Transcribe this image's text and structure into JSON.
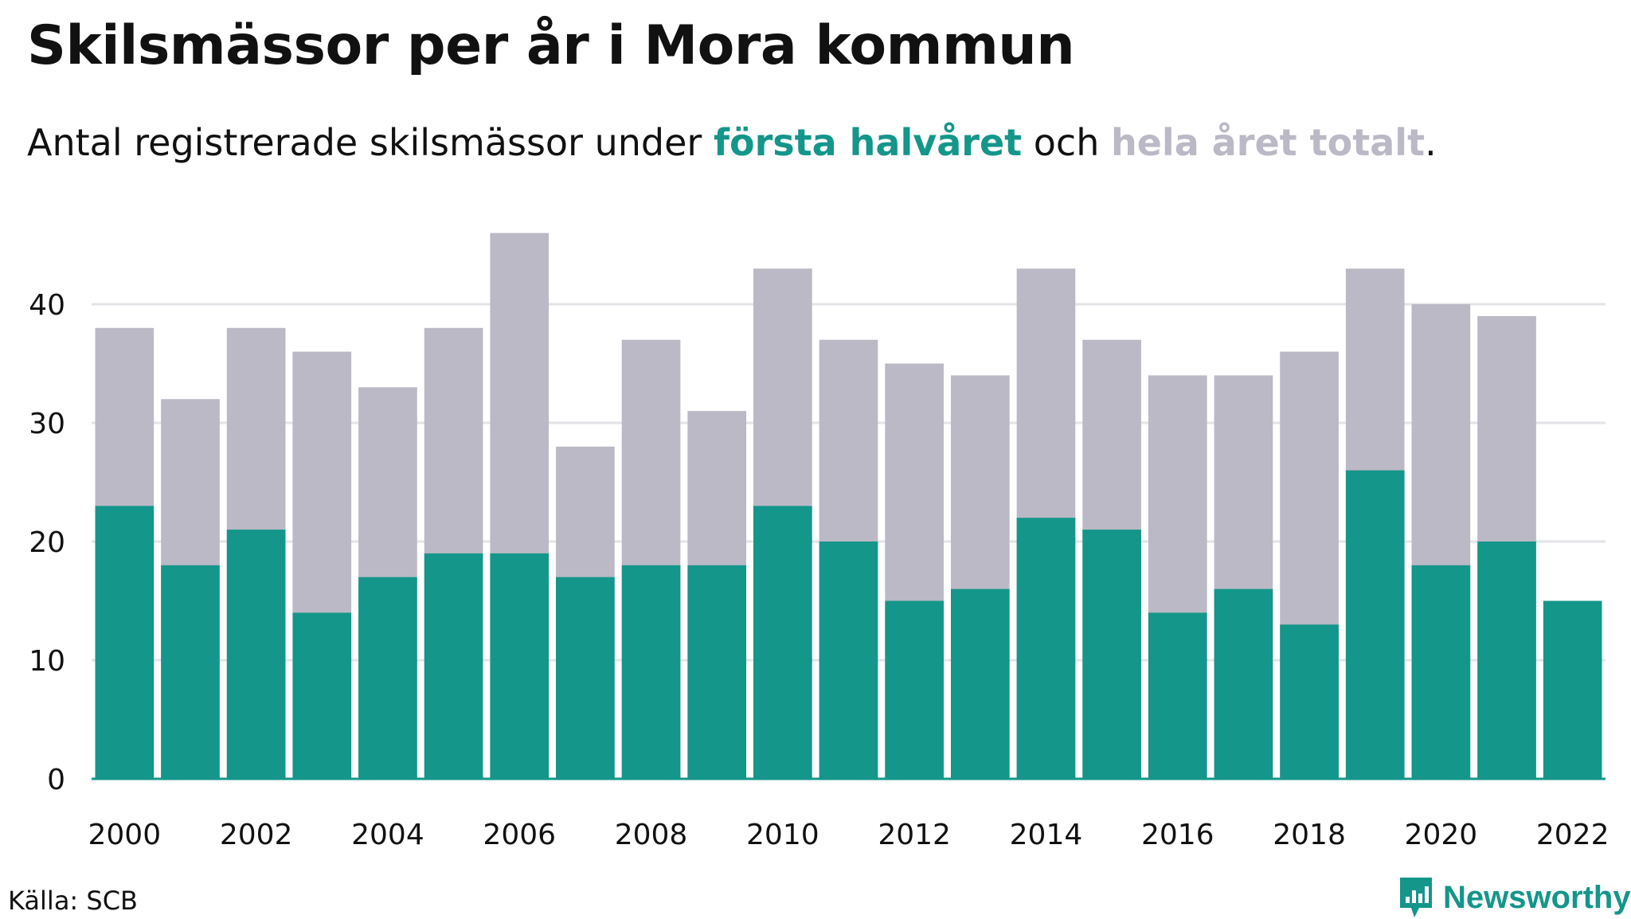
{
  "title": "Skilsmässor per år i Mora kommun",
  "subtitle": {
    "prefix": "Antal registrerade skilsmässor under ",
    "highlight1": "första halvåret",
    "middle": " och ",
    "highlight2": "hela året totalt",
    "suffix": "."
  },
  "source": "Källa: SCB",
  "brand": "Newsworthy",
  "colors": {
    "first_half": "#14968a",
    "total": "#bab9c5",
    "grid": "#e3e3e8",
    "baseline": "#14968a",
    "text": "#111111"
  },
  "chart_data": {
    "type": "bar",
    "categories": [
      "2000",
      "2001",
      "2002",
      "2003",
      "2004",
      "2005",
      "2006",
      "2007",
      "2008",
      "2009",
      "2010",
      "2011",
      "2012",
      "2013",
      "2014",
      "2015",
      "2016",
      "2017",
      "2018",
      "2019",
      "2020",
      "2021",
      "2022"
    ],
    "x_tick_labels": [
      "2000",
      "2002",
      "2004",
      "2006",
      "2008",
      "2010",
      "2012",
      "2014",
      "2016",
      "2018",
      "2020",
      "2022"
    ],
    "y_ticks": [
      0,
      10,
      20,
      30,
      40
    ],
    "ylim": [
      0,
      46
    ],
    "grid": true,
    "series": [
      {
        "name": "hela året totalt",
        "values": [
          38,
          32,
          38,
          36,
          33,
          38,
          46,
          28,
          37,
          31,
          43,
          37,
          35,
          34,
          43,
          37,
          34,
          34,
          36,
          43,
          40,
          39,
          null
        ]
      },
      {
        "name": "första halvåret",
        "values": [
          23,
          18,
          21,
          14,
          17,
          19,
          19,
          17,
          18,
          18,
          23,
          20,
          15,
          16,
          22,
          21,
          14,
          16,
          13,
          26,
          18,
          20,
          15
        ]
      }
    ]
  }
}
